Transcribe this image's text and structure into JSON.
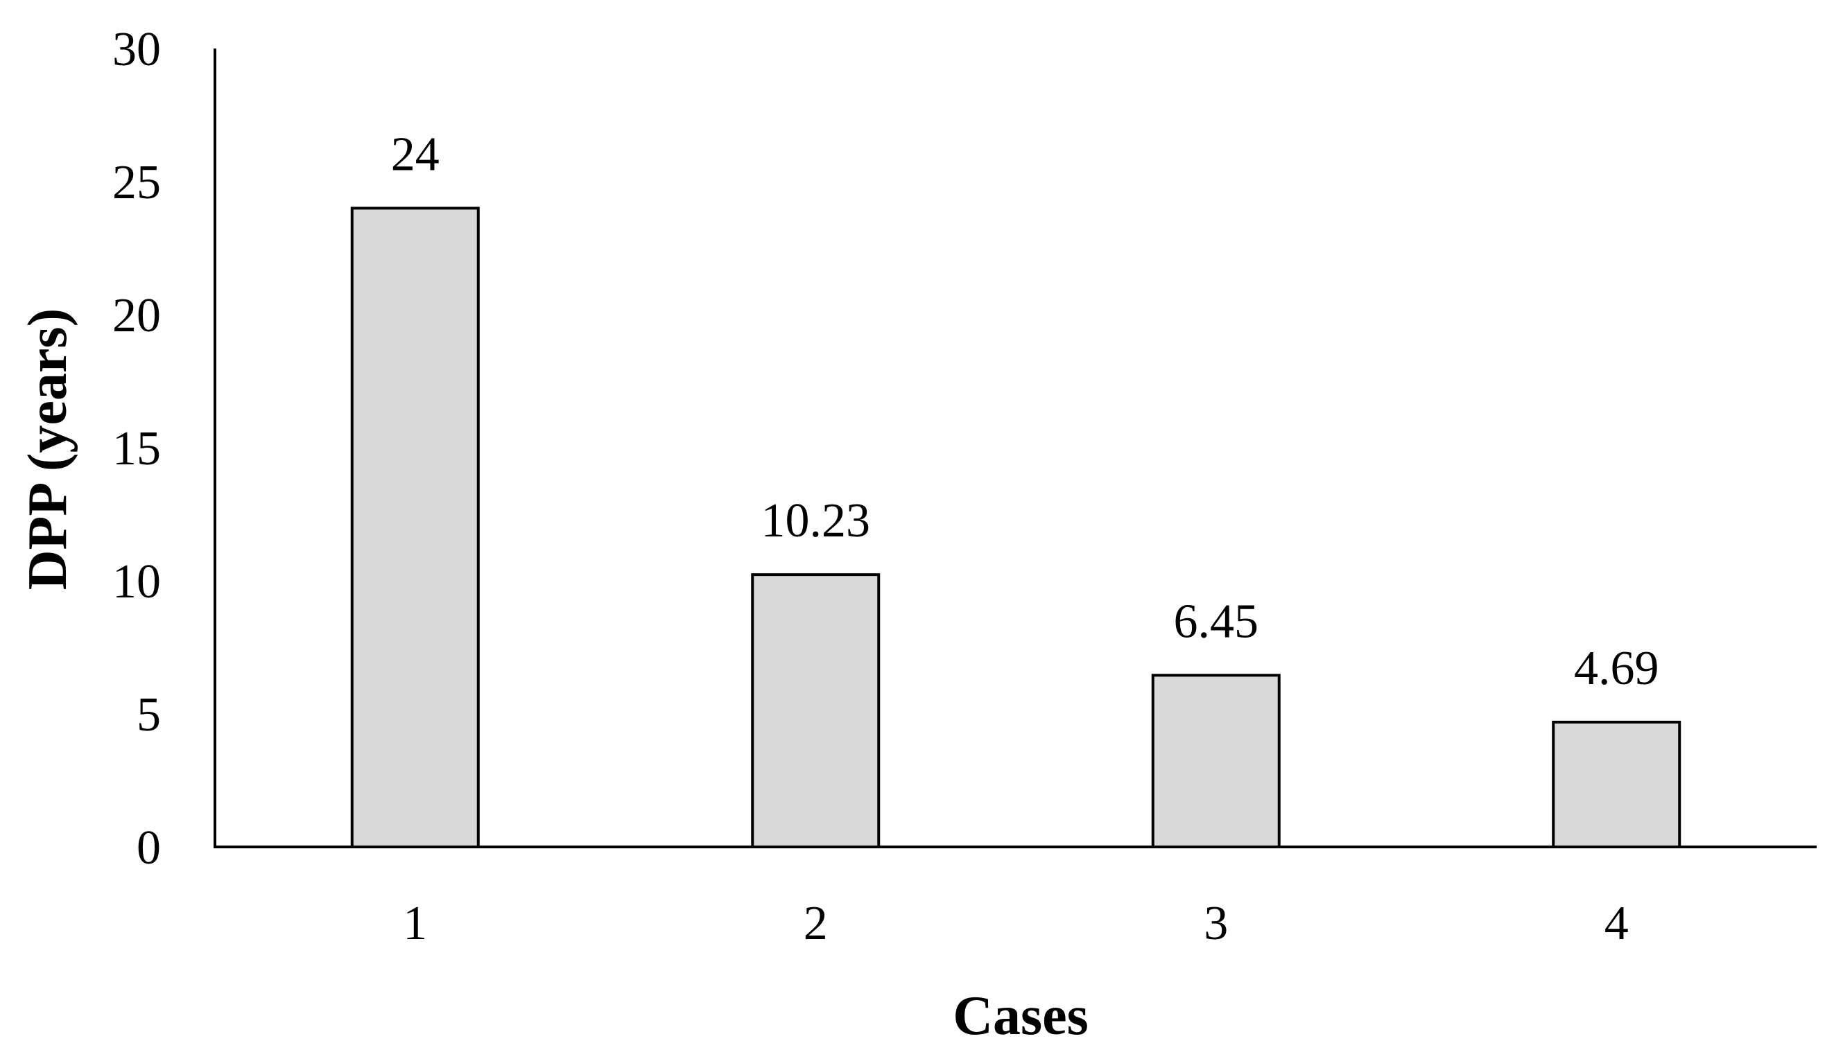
{
  "chart_data": {
    "type": "bar",
    "title": "",
    "xlabel": "Cases",
    "ylabel": "DPP (years)",
    "categories": [
      "1",
      "2",
      "3",
      "4"
    ],
    "values": [
      24,
      10.23,
      6.45,
      4.69
    ],
    "data_labels": [
      "24",
      "10.23",
      "6.45",
      "4.69"
    ],
    "ylim": [
      0,
      30
    ],
    "yticks": [
      0,
      5,
      10,
      15,
      20,
      25,
      30
    ],
    "grid": false,
    "legend": "none",
    "bar_color": "#d9d9d9",
    "bar_edge_color": "#000000"
  }
}
